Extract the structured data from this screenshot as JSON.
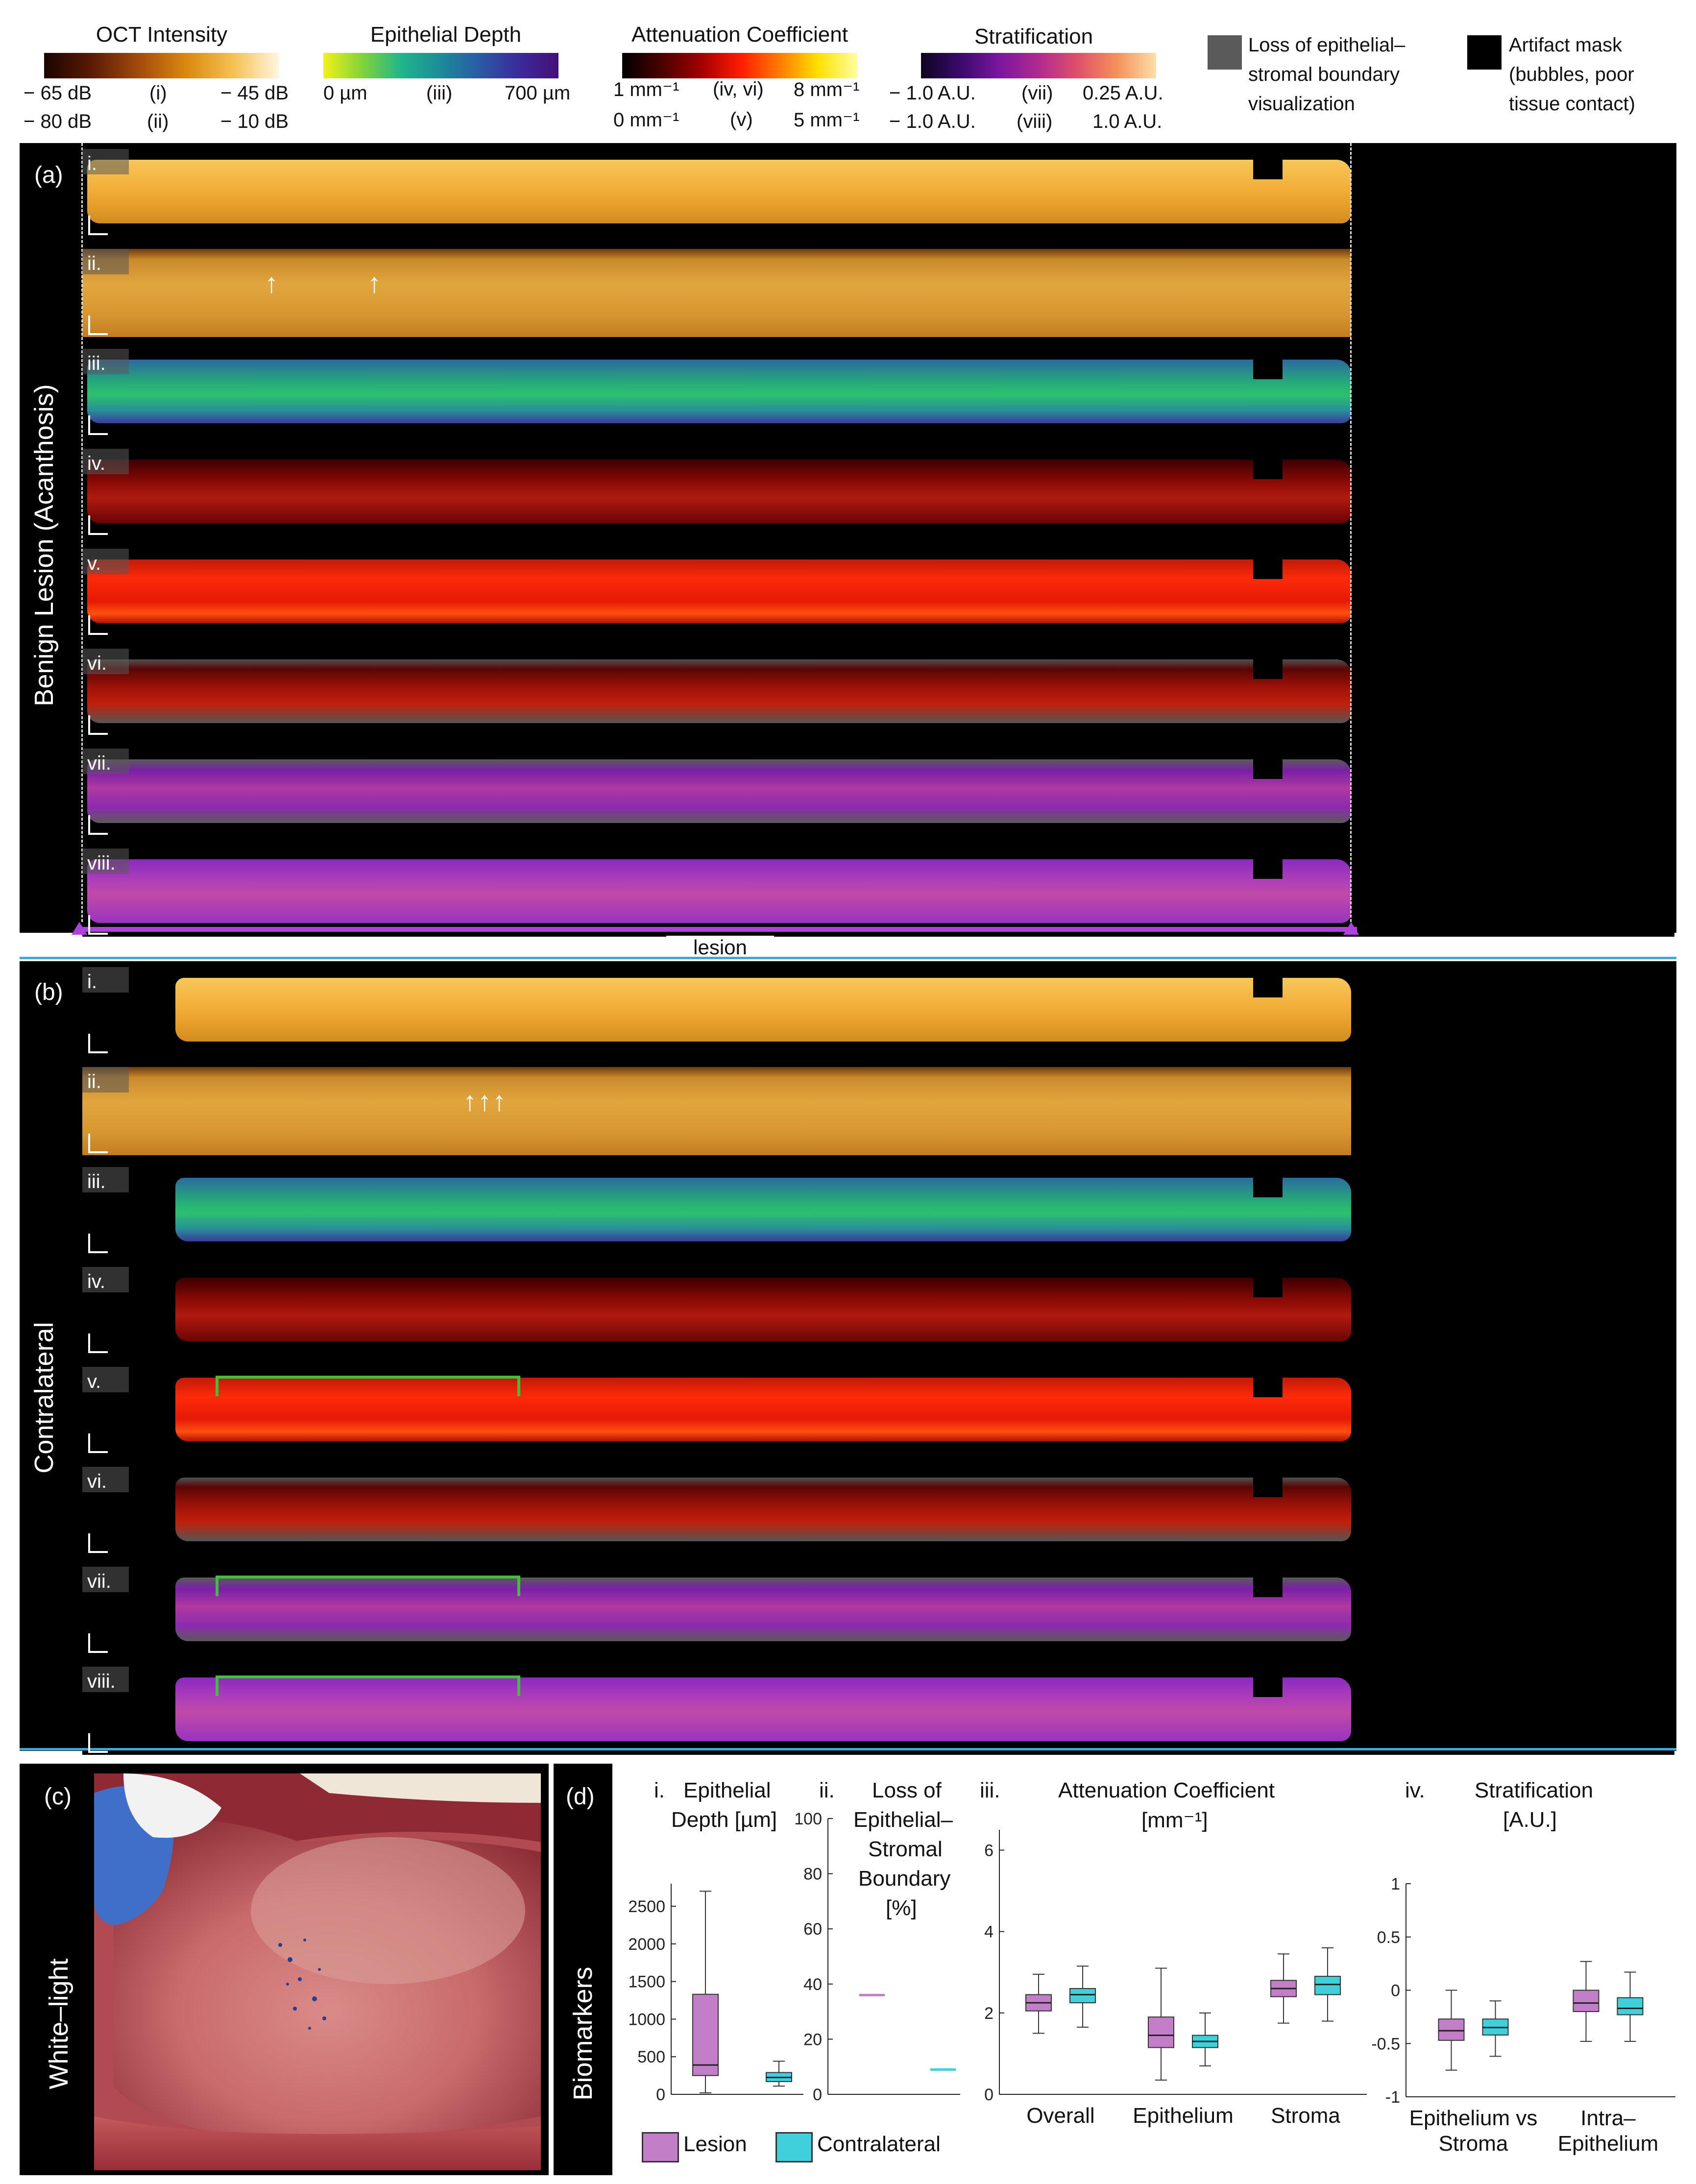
{
  "legend": {
    "oct": {
      "title": "OCT Intensity",
      "row1": "− 65 dB",
      "row1_mid": "(i)",
      "row1_end": "− 45 dB",
      "row2": "− 80 dB",
      "row2_mid": "(ii)",
      "row2_end": "− 10 dB"
    },
    "depth": {
      "title": "Epithelial Depth",
      "row1": "0 µm",
      "row1_mid": "(iii)",
      "row1_end": "700 µm"
    },
    "atten": {
      "title": "Attenuation Coefficient",
      "row1": "1 mm⁻¹",
      "row1_mid": "(iv, vi)",
      "row1_end": "8 mm⁻¹",
      "row2": "0 mm⁻¹",
      "row2_mid": "(v)",
      "row2_end": "5 mm⁻¹"
    },
    "strat": {
      "title": "Stratification",
      "row1": "− 1.0 A.U.",
      "row1_mid": "(vii)",
      "row1_end": "0.25 A.U.",
      "row2": "− 1.0 A.U.",
      "row2_mid": "(viii)",
      "row2_end": "1.0 A.U."
    },
    "loss": {
      "line1": "Loss of epithelial–",
      "line2": "stromal boundary",
      "line3": "visualization",
      "color": "#5a5a5a"
    },
    "artifact": {
      "line1": "Artifact mask",
      "line2": "(bubbles, poor",
      "line3": "tissue contact)",
      "color": "#000000"
    }
  },
  "panel_a": {
    "letter": "(a)",
    "side": "Benign Lesion (Acanthosis)",
    "rows": [
      "i.",
      "ii.",
      "iii.",
      "iv.",
      "v.",
      "vi.",
      "vii.",
      "viii."
    ],
    "lesion_label": "lesion"
  },
  "panel_b": {
    "letter": "(b)",
    "side": "Contralateral",
    "rows": [
      "i.",
      "ii.",
      "iii.",
      "iv.",
      "v.",
      "vi.",
      "vii.",
      "viii."
    ]
  },
  "panel_c": {
    "letter": "(c)",
    "side": "White–light"
  },
  "panel_d": {
    "letter": "(d)",
    "side": "Biomarkers",
    "titles": {
      "i_num": "i.",
      "i_l1": "Epithelial",
      "i_l2": "Depth [µm]",
      "ii_num": "ii.",
      "ii_l1": "Loss of",
      "ii_l2": "Epithelial–",
      "ii_l3": "Stromal",
      "ii_l4": "Boundary",
      "ii_l5": "[%]",
      "iii_num": "iii.",
      "iii_l1": "Attenuation Coefficient",
      "iii_l2": "[mm⁻¹]",
      "iv_num": "iv.",
      "iv_l1": "Stratification",
      "iv_l2": "[A.U.]"
    },
    "legend": {
      "lesion": "Lesion",
      "contralateral": "Contralateral",
      "lesion_color": "#c27fc8",
      "contra_color": "#3fd0dc"
    }
  },
  "chart_data": [
    {
      "type": "box",
      "title": "Epithelial Depth [µm]",
      "ylim": [
        0,
        2800
      ],
      "yticks": [
        "0",
        "500",
        "1000",
        "1500",
        "2000",
        "2500"
      ],
      "boxes": [
        {
          "group": "Lesion",
          "min": 20,
          "q1": 250,
          "median": 390,
          "q3": 1330,
          "max": 2700
        },
        {
          "group": "Contralateral",
          "min": 110,
          "q1": 170,
          "median": 225,
          "q3": 290,
          "max": 440
        }
      ]
    },
    {
      "type": "box",
      "title": "Loss of Epithelial–Stromal Boundary [%]",
      "ylim": [
        0,
        100
      ],
      "yticks": [
        "0",
        "20",
        "40",
        "60",
        "80",
        "100"
      ],
      "boxes": [
        {
          "group": "Lesion",
          "min": 36,
          "q1": 36,
          "median": 36,
          "q3": 36,
          "max": 36
        },
        {
          "group": "Contralateral",
          "min": 9,
          "q1": 9,
          "median": 9,
          "q3": 9,
          "max": 9
        }
      ]
    },
    {
      "type": "box",
      "title": "Attenuation Coefficient [mm⁻¹]",
      "ylim": [
        0,
        6.5
      ],
      "yticks": [
        "0",
        "2",
        "4",
        "6"
      ],
      "categories": [
        "Overall",
        "Epithelium",
        "Stroma"
      ],
      "boxes": [
        {
          "category": "Overall",
          "group": "Lesion",
          "min": 1.5,
          "q1": 2.05,
          "median": 2.25,
          "q3": 2.45,
          "max": 2.95
        },
        {
          "category": "Overall",
          "group": "Contralateral",
          "min": 1.65,
          "q1": 2.25,
          "median": 2.45,
          "q3": 2.6,
          "max": 3.15
        },
        {
          "category": "Epithelium",
          "group": "Lesion",
          "min": 0.35,
          "q1": 1.15,
          "median": 1.45,
          "q3": 1.9,
          "max": 3.1
        },
        {
          "category": "Epithelium",
          "group": "Contralateral",
          "min": 0.7,
          "q1": 1.15,
          "median": 1.3,
          "q3": 1.45,
          "max": 2.0
        },
        {
          "category": "Stroma",
          "group": "Lesion",
          "min": 1.75,
          "q1": 2.4,
          "median": 2.6,
          "q3": 2.8,
          "max": 3.45
        },
        {
          "category": "Stroma",
          "group": "Contralateral",
          "min": 1.8,
          "q1": 2.45,
          "median": 2.7,
          "q3": 2.9,
          "max": 3.6
        }
      ]
    },
    {
      "type": "box",
      "title": "Stratification [A.U.]",
      "ylim": [
        -1,
        1
      ],
      "yticks": [
        "-1",
        "-0.5",
        "0",
        "0.5",
        "1"
      ],
      "categories": [
        "Epithelium vs Stroma",
        "Intra–Epithelium"
      ],
      "cat_lines": [
        [
          "Epithelium vs",
          "Stroma"
        ],
        [
          "Intra–",
          "Epithelium"
        ]
      ],
      "boxes": [
        {
          "category": "Epithelium vs Stroma",
          "group": "Lesion",
          "min": -0.75,
          "q1": -0.47,
          "median": -0.38,
          "q3": -0.27,
          "max": 0.0
        },
        {
          "category": "Epithelium vs Stroma",
          "group": "Contralateral",
          "min": -0.62,
          "q1": -0.42,
          "median": -0.35,
          "q3": -0.27,
          "max": -0.1
        },
        {
          "category": "Intra–Epithelium",
          "group": "Lesion",
          "min": -0.48,
          "q1": -0.2,
          "median": -0.12,
          "q3": 0.0,
          "max": 0.27
        },
        {
          "category": "Intra–Epithelium",
          "group": "Contralateral",
          "min": -0.48,
          "q1": -0.23,
          "median": -0.17,
          "q3": -0.07,
          "max": 0.17
        }
      ]
    }
  ]
}
